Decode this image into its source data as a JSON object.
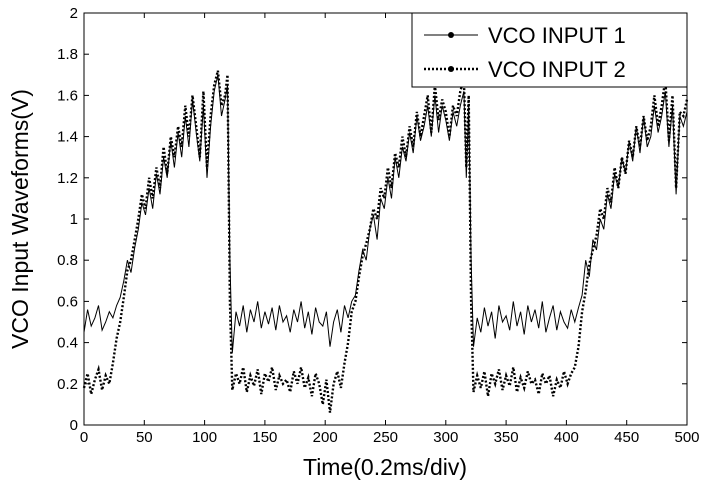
{
  "chart_data": {
    "type": "line",
    "title": "",
    "xlabel": "Time(0.2ms/div)",
    "ylabel": "VCO Input Waveforms(V)",
    "xlim": [
      0,
      500
    ],
    "ylim": [
      0,
      2
    ],
    "xticks": [
      "0",
      "50",
      "100",
      "150",
      "200",
      "250",
      "300",
      "350",
      "400",
      "450",
      "500"
    ],
    "yticks": [
      "0",
      "0.2",
      "0.4",
      "0.6",
      "0.8",
      "1",
      "1.2",
      "1.4",
      "1.6",
      "1.8",
      "2"
    ],
    "grid": false,
    "legend_position": "top-right",
    "series": [
      {
        "name": "VCO INPUT 1",
        "style": "solid-dot",
        "color": "#000000",
        "x": [
          0,
          3,
          6,
          9,
          12,
          15,
          18,
          21,
          24,
          27,
          30,
          33,
          36,
          39,
          42,
          45,
          48,
          51,
          54,
          57,
          60,
          63,
          66,
          69,
          72,
          75,
          78,
          81,
          84,
          87,
          90,
          93,
          96,
          99,
          102,
          105,
          108,
          111,
          114,
          117,
          119,
          121,
          123,
          126,
          129,
          132,
          135,
          138,
          141,
          144,
          147,
          150,
          153,
          156,
          159,
          162,
          165,
          168,
          171,
          174,
          177,
          180,
          183,
          186,
          189,
          192,
          195,
          198,
          201,
          204,
          207,
          210,
          213,
          216,
          219,
          222,
          225,
          228,
          231,
          234,
          237,
          240,
          243,
          246,
          249,
          252,
          255,
          258,
          261,
          264,
          267,
          270,
          273,
          276,
          279,
          282,
          285,
          288,
          291,
          294,
          297,
          300,
          303,
          306,
          309,
          312,
          315,
          317,
          319,
          321,
          323,
          326,
          329,
          332,
          335,
          338,
          341,
          344,
          347,
          350,
          353,
          356,
          359,
          362,
          365,
          368,
          371,
          374,
          377,
          380,
          383,
          386,
          389,
          392,
          395,
          398,
          401,
          404,
          407,
          410,
          413,
          416,
          419,
          422,
          425,
          428,
          431,
          434,
          437,
          440,
          443,
          446,
          449,
          452,
          455,
          458,
          461,
          464,
          467,
          470,
          473,
          476,
          479,
          482,
          485,
          488,
          491,
          494,
          497,
          500
        ],
        "values": [
          0.45,
          0.56,
          0.48,
          0.52,
          0.58,
          0.46,
          0.5,
          0.55,
          0.52,
          0.58,
          0.62,
          0.7,
          0.8,
          0.74,
          0.86,
          0.95,
          1.08,
          1.02,
          1.15,
          1.05,
          1.22,
          1.12,
          1.3,
          1.2,
          1.38,
          1.25,
          1.42,
          1.3,
          1.5,
          1.35,
          1.58,
          1.42,
          1.28,
          1.55,
          1.2,
          1.45,
          1.62,
          1.7,
          1.5,
          1.58,
          1.65,
          0.8,
          0.35,
          0.55,
          0.48,
          0.58,
          0.45,
          0.56,
          0.5,
          0.6,
          0.47,
          0.55,
          0.49,
          0.57,
          0.46,
          0.58,
          0.5,
          0.53,
          0.45,
          0.56,
          0.5,
          0.6,
          0.47,
          0.55,
          0.44,
          0.57,
          0.5,
          0.48,
          0.55,
          0.38,
          0.5,
          0.56,
          0.45,
          0.58,
          0.52,
          0.6,
          0.63,
          0.75,
          0.85,
          0.8,
          0.95,
          1.02,
          0.9,
          1.1,
          1.05,
          1.2,
          1.1,
          1.3,
          1.2,
          1.35,
          1.28,
          1.42,
          1.32,
          1.5,
          1.38,
          1.45,
          1.55,
          1.4,
          1.6,
          1.42,
          1.55,
          1.48,
          1.38,
          1.52,
          1.45,
          1.55,
          1.62,
          1.2,
          1.55,
          0.8,
          0.38,
          0.52,
          0.45,
          0.57,
          0.48,
          0.55,
          0.42,
          0.58,
          0.5,
          0.53,
          0.46,
          0.6,
          0.48,
          0.55,
          0.44,
          0.58,
          0.5,
          0.56,
          0.47,
          0.6,
          0.45,
          0.52,
          0.58,
          0.46,
          0.55,
          0.5,
          0.47,
          0.56,
          0.5,
          0.57,
          0.63,
          0.8,
          0.72,
          0.9,
          0.85,
          1.0,
          0.95,
          1.12,
          1.05,
          1.22,
          1.15,
          1.3,
          1.22,
          1.38,
          1.28,
          1.45,
          1.32,
          1.5,
          1.35,
          1.4,
          1.55,
          1.42,
          1.5,
          1.62,
          1.35,
          1.55,
          1.12,
          1.5,
          1.45,
          1.52
        ]
      },
      {
        "name": "VCO INPUT 2",
        "style": "dotted-dot",
        "color": "#000000",
        "x": [
          0,
          3,
          6,
          9,
          12,
          15,
          18,
          21,
          24,
          27,
          30,
          33,
          36,
          39,
          42,
          45,
          48,
          51,
          54,
          57,
          60,
          63,
          66,
          69,
          72,
          75,
          78,
          81,
          84,
          87,
          90,
          93,
          96,
          99,
          102,
          105,
          108,
          111,
          114,
          117,
          119,
          121,
          123,
          126,
          129,
          132,
          135,
          138,
          141,
          144,
          147,
          150,
          153,
          156,
          159,
          162,
          165,
          168,
          171,
          174,
          177,
          180,
          183,
          186,
          189,
          192,
          195,
          198,
          201,
          204,
          207,
          210,
          213,
          216,
          219,
          222,
          225,
          228,
          231,
          234,
          237,
          240,
          243,
          246,
          249,
          252,
          255,
          258,
          261,
          264,
          267,
          270,
          273,
          276,
          279,
          282,
          285,
          288,
          291,
          294,
          297,
          300,
          303,
          306,
          309,
          312,
          315,
          317,
          319,
          321,
          323,
          326,
          329,
          332,
          335,
          338,
          341,
          344,
          347,
          350,
          353,
          356,
          359,
          362,
          365,
          368,
          371,
          374,
          377,
          380,
          383,
          386,
          389,
          392,
          395,
          398,
          401,
          404,
          407,
          410,
          413,
          416,
          419,
          422,
          425,
          428,
          431,
          434,
          437,
          440,
          443,
          446,
          449,
          452,
          455,
          458,
          461,
          464,
          467,
          470,
          473,
          476,
          479,
          482,
          485,
          488,
          491,
          494,
          497,
          500
        ],
        "values": [
          0.18,
          0.25,
          0.15,
          0.22,
          0.27,
          0.17,
          0.24,
          0.2,
          0.3,
          0.42,
          0.5,
          0.62,
          0.75,
          0.8,
          0.9,
          1.0,
          1.12,
          1.05,
          1.2,
          1.1,
          1.25,
          1.15,
          1.35,
          1.22,
          1.4,
          1.3,
          1.45,
          1.35,
          1.55,
          1.4,
          1.6,
          1.45,
          1.3,
          1.62,
          1.25,
          1.5,
          1.65,
          1.72,
          1.55,
          1.6,
          1.7,
          0.6,
          0.17,
          0.25,
          0.2,
          0.28,
          0.16,
          0.24,
          0.19,
          0.27,
          0.15,
          0.25,
          0.21,
          0.28,
          0.17,
          0.24,
          0.2,
          0.22,
          0.16,
          0.26,
          0.2,
          0.28,
          0.18,
          0.23,
          0.14,
          0.25,
          0.2,
          0.1,
          0.22,
          0.06,
          0.2,
          0.26,
          0.18,
          0.3,
          0.4,
          0.55,
          0.6,
          0.72,
          0.82,
          0.88,
          0.95,
          1.05,
          1.0,
          1.15,
          1.1,
          1.25,
          1.15,
          1.32,
          1.25,
          1.4,
          1.3,
          1.45,
          1.35,
          1.52,
          1.4,
          1.5,
          1.6,
          1.42,
          1.65,
          1.48,
          1.58,
          1.52,
          1.4,
          1.55,
          1.5,
          1.62,
          1.68,
          1.25,
          1.6,
          0.6,
          0.16,
          0.24,
          0.18,
          0.26,
          0.14,
          0.25,
          0.2,
          0.27,
          0.17,
          0.24,
          0.19,
          0.28,
          0.16,
          0.23,
          0.18,
          0.26,
          0.2,
          0.22,
          0.15,
          0.25,
          0.2,
          0.24,
          0.14,
          0.22,
          0.18,
          0.26,
          0.2,
          0.25,
          0.28,
          0.38,
          0.55,
          0.65,
          0.78,
          0.85,
          0.92,
          1.05,
          1.0,
          1.15,
          1.08,
          1.25,
          1.15,
          1.3,
          1.22,
          1.38,
          1.3,
          1.45,
          1.35,
          1.5,
          1.38,
          1.45,
          1.6,
          1.45,
          1.55,
          1.68,
          1.38,
          1.6,
          1.15,
          1.52,
          1.5,
          1.58
        ]
      }
    ]
  }
}
